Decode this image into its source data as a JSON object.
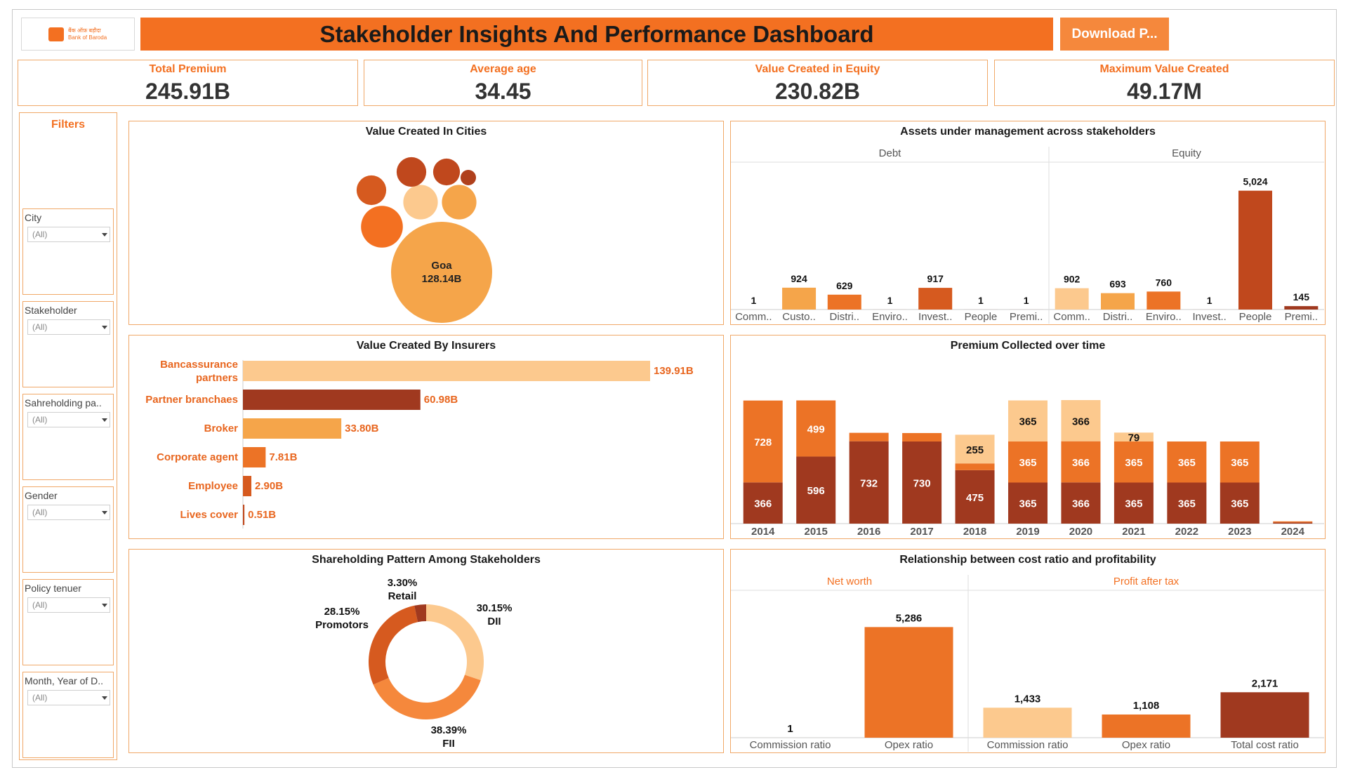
{
  "header": {
    "logo_text_1": "बैंक ऑफ़ बड़ौदा",
    "logo_text_2": "Bank of Baroda",
    "title": "Stakeholder Insights And Performance Dashboard",
    "download_label": "Download P..."
  },
  "kpis": [
    {
      "label": "Total Premium",
      "value": "245.91B"
    },
    {
      "label": "Average age",
      "value": "34.45"
    },
    {
      "label": "Value Created in Equity",
      "value": "230.82B"
    },
    {
      "label": "Maximum Value Created",
      "value": "49.17M"
    }
  ],
  "filters": {
    "title": "Filters",
    "items": [
      {
        "label": "City",
        "value": "(All)"
      },
      {
        "label": "Stakeholder",
        "value": "(All)"
      },
      {
        "label": "Sahreholding pa..",
        "value": "(All)"
      },
      {
        "label": "Gender",
        "value": "(All)"
      },
      {
        "label": "Policy tenuer",
        "value": "(All)"
      },
      {
        "label": "Month, Year of D..",
        "value": "(All)"
      }
    ]
  },
  "colors": {
    "accent": "#f37021",
    "light": "#fcc98e",
    "mid": "#f5a54a",
    "orange": "#ec7326",
    "dark_orange": "#d65a1f",
    "brown": "#a0391f",
    "panel_border": "#f0a868"
  },
  "chart_data": [
    {
      "id": "cities",
      "type": "bubble",
      "title": "Value Created In Cities",
      "bubbles": [
        {
          "label": "Goa",
          "value_label": "128.14B",
          "value": 128.14,
          "color": "#f5a54a"
        },
        {
          "label": "",
          "value": 22,
          "color": "#f37021"
        },
        {
          "label": "",
          "value": 15,
          "color": "#fcc98e"
        },
        {
          "label": "",
          "value": 15,
          "color": "#f5a54a"
        },
        {
          "label": "",
          "value": 11,
          "color": "#d65a1f"
        },
        {
          "label": "",
          "value": 11,
          "color": "#c0481d"
        },
        {
          "label": "",
          "value": 9,
          "color": "#c0481d"
        },
        {
          "label": "",
          "value": 3,
          "color": "#b0401c"
        }
      ]
    },
    {
      "id": "aum",
      "type": "bar",
      "title": "Assets under management across stakeholders",
      "panels": [
        {
          "name": "Debt",
          "categories": [
            "Comm..",
            "Custo..",
            "Distri..",
            "Enviro..",
            "Invest..",
            "People",
            "Premi.."
          ],
          "values": [
            1,
            924,
            629,
            1,
            917,
            1,
            1
          ],
          "colors": [
            "#fcc98e",
            "#f5a54a",
            "#ec7326",
            "#ec7326",
            "#d65a1f",
            "#a0391f",
            "#a0391f"
          ]
        },
        {
          "name": "Equity",
          "categories": [
            "Comm..",
            "Distri..",
            "Enviro..",
            "Invest..",
            "People",
            "Premi.."
          ],
          "values": [
            902,
            693,
            760,
            1,
            5024,
            145
          ],
          "colors": [
            "#fcc98e",
            "#f5a54a",
            "#ec7326",
            "#d65a1f",
            "#c0481d",
            "#a0391f"
          ]
        }
      ],
      "ylim": [
        0,
        5400
      ]
    },
    {
      "id": "insurers",
      "type": "bar",
      "orientation": "horizontal",
      "title": "Value Created By Insurers",
      "categories": [
        "Bancassurance partners",
        "Partner branchaes",
        "Broker",
        "Corporate agent",
        "Employee",
        "Lives cover"
      ],
      "values": [
        139.91,
        60.98,
        33.8,
        7.81,
        2.9,
        0.51
      ],
      "value_labels": [
        "139.91B",
        "60.98B",
        "33.80B",
        "7.81B",
        "2.90B",
        "0.51B"
      ],
      "colors": [
        "#fcc98e",
        "#a0391f",
        "#f5a54a",
        "#ec7326",
        "#d65a1f",
        "#c0481d"
      ]
    },
    {
      "id": "premium",
      "type": "bar",
      "stacked": true,
      "title": "Premium Collected over time",
      "categories": [
        "2014",
        "2015",
        "2016",
        "2017",
        "2018",
        "2019",
        "2020",
        "2021",
        "2022",
        "2023",
        "2024"
      ],
      "series": [
        {
          "values": [
            366,
            596,
            732,
            730,
            475,
            365,
            366,
            365,
            365,
            365,
            10
          ],
          "labels": [
            "366",
            "596",
            "732",
            "730",
            "475",
            "365",
            "366",
            "365",
            "365",
            "365",
            ""
          ],
          "color": "#a0391f"
        },
        {
          "values": [
            0,
            0,
            0,
            0,
            60,
            365,
            366,
            365,
            365,
            365,
            10
          ],
          "labels": [
            "",
            "",
            "",
            "",
            "",
            "365",
            "366",
            "365",
            "365",
            "365",
            ""
          ],
          "color": "#ec7326"
        },
        {
          "values": [
            0,
            0,
            0,
            0,
            255,
            365,
            366,
            79,
            0,
            0,
            0
          ],
          "labels": [
            "",
            "",
            "",
            "",
            "255",
            "365",
            "366",
            "79",
            "",
            "",
            ""
          ],
          "color": "#fcc98e"
        },
        {
          "values": [
            728,
            499,
            75,
            75,
            0,
            0,
            0,
            0,
            0,
            0,
            0
          ],
          "labels": [
            "728",
            "499",
            "",
            "",
            "",
            "",
            "",
            "",
            "",
            "",
            ""
          ],
          "color": "#ec7326"
        }
      ],
      "ylim": [
        0,
        1360
      ]
    },
    {
      "id": "shareholding",
      "type": "pie",
      "donut": true,
      "title": "Shareholding Pattern Among Stakeholders",
      "slices": [
        {
          "name": "DII",
          "pct": "30.15%",
          "value": 30.15,
          "color": "#fcc98e"
        },
        {
          "name": "FII",
          "pct": "38.39%",
          "value": 38.39,
          "color": "#f5883c"
        },
        {
          "name": "Promotors",
          "pct": "28.15%",
          "value": 28.15,
          "color": "#d65a1f"
        },
        {
          "name": "Retail",
          "pct": "3.30%",
          "value": 3.3,
          "color": "#a0391f"
        }
      ]
    },
    {
      "id": "cost_ratio",
      "type": "bar",
      "title": "Relationship between cost ratio and profitability",
      "panels": [
        {
          "name": "Net worth",
          "categories": [
            "Commission ratio",
            "Opex ratio"
          ],
          "values": [
            1,
            5286
          ],
          "colors": [
            "#fcc98e",
            "#ec7326"
          ]
        },
        {
          "name": "Profit after tax",
          "categories": [
            "Commission ratio",
            "Opex ratio",
            "Total cost ratio"
          ],
          "values": [
            1433,
            1108,
            2171
          ],
          "colors": [
            "#fcc98e",
            "#ec7326",
            "#a0391f"
          ]
        }
      ],
      "ylim": [
        0,
        5500
      ]
    }
  ]
}
